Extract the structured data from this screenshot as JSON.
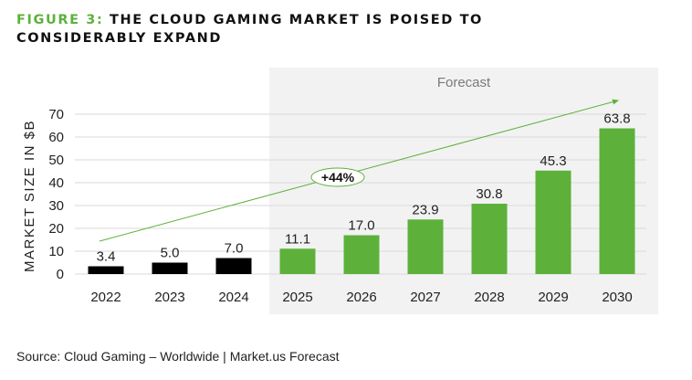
{
  "title": {
    "prefix": "FIGURE 3:",
    "line1": "THE CLOUD GAMING MARKET IS POISED TO",
    "line2": "CONSIDERABLY EXPAND"
  },
  "source": "Source: Cloud Gaming – Worldwide | Market.us Forecast",
  "colors": {
    "actual": "#000000",
    "forecast": "#5db13b",
    "accent": "#5db13b",
    "forecast_panel": "#f2f2f2",
    "grid": "#d9d9d9"
  },
  "chart_data": {
    "type": "bar",
    "title": "The Cloud Gaming Market Is Poised to Considerably Expand",
    "xlabel": "",
    "ylabel": "MARKET SIZE IN $B",
    "ylim": [
      0,
      70
    ],
    "yticks": [
      0,
      10,
      20,
      30,
      40,
      50,
      60,
      70
    ],
    "grid": true,
    "categories": [
      "2022",
      "2023",
      "2024",
      "2025",
      "2026",
      "2027",
      "2028",
      "2029",
      "2030"
    ],
    "values": [
      3.4,
      5.0,
      7.0,
      11.1,
      17.0,
      23.9,
      30.8,
      45.3,
      63.8
    ],
    "value_labels": [
      "3.4",
      "5.0",
      "7.0",
      "11.1",
      "17.0",
      "23.9",
      "30.8",
      "45.3",
      "63.8"
    ],
    "series_type": [
      "actual",
      "actual",
      "actual",
      "forecast",
      "forecast",
      "forecast",
      "forecast",
      "forecast",
      "forecast"
    ],
    "forecast_region": {
      "label": "Forecast",
      "from": "2025",
      "to": "2030"
    },
    "annotation": {
      "text": "+44%",
      "type": "growth-arrow",
      "from": "2022",
      "to": "2030"
    }
  }
}
